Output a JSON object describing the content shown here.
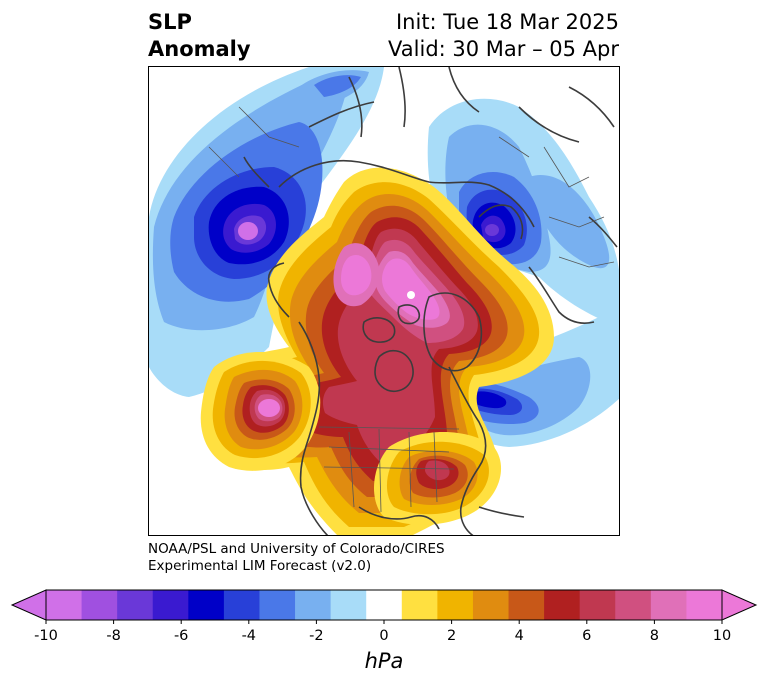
{
  "header": {
    "title_line1": "SLP",
    "title_line2": "Anomaly",
    "init_text": "Init: Tue 18 Mar 2025",
    "valid_text": "Valid: 30 Mar – 05 Apr"
  },
  "credit": {
    "line1": "NOAA/PSL and University of Colorado/CIRES",
    "line2": "Experimental LIM Forecast (v2.0)"
  },
  "colorbar": {
    "unit_label": "hPa",
    "ticks": [
      "-10",
      "-8",
      "-6",
      "-4",
      "-2",
      "0",
      "2",
      "4",
      "6",
      "8",
      "10"
    ],
    "colors": [
      "#d070e8",
      "#a050e0",
      "#6a38d8",
      "#3a1ad0",
      "#0000c8",
      "#2840d8",
      "#4a78e8",
      "#78b0f0",
      "#a8dcf8",
      "#ffffff",
      "#ffe040",
      "#f0b400",
      "#e08c10",
      "#c85818",
      "#b02020",
      "#c03850",
      "#d05080",
      "#e070b8",
      "#ec78d8"
    ],
    "color_low_extend": "#d070e8",
    "color_high_extend": "#ec78d8"
  },
  "map": {
    "projection": "north-polar-stereographic",
    "features": [
      "Pacific low (negative anomaly) near Aleutians",
      "Positive anomaly over Arctic and North America",
      "Negative anomaly over Scandinavia",
      "Negative anomaly off Newfoundland"
    ]
  }
}
